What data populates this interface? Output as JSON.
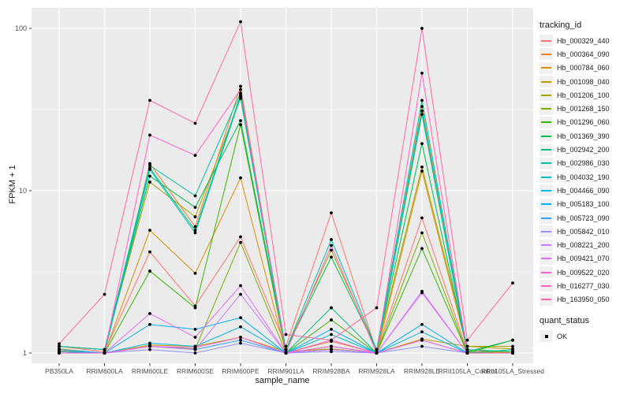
{
  "figure": {
    "y_axis_title": "FPKM + 1",
    "x_axis_title": "sample_name",
    "legend1_title": "tracking_id",
    "legend2_title": "quant_status",
    "quant_status_label": "OK",
    "panel_bg": "#EBEBEB",
    "grid_color": "#FFFFFF",
    "tick_color": "#333333",
    "point_color": "#000000"
  },
  "chart_data": {
    "type": "line",
    "title": "",
    "xlabel": "sample_name",
    "ylabel": "FPKM + 1",
    "y_scale": "log10",
    "ylim": [
      0.87,
      135
    ],
    "y_major_ticks": [
      1,
      10,
      100
    ],
    "y_tick_labels": [
      "1",
      "10",
      "100"
    ],
    "y_minor_gridlines": [
      3.162,
      31.62
    ],
    "grid": "on",
    "legend_position": "right",
    "point_legend": {
      "title": "quant_status",
      "entries": [
        {
          "label": "OK",
          "symbol": "black-point"
        }
      ]
    },
    "categories": [
      "PB350LA",
      "RRIM600LA",
      "RRIM600LE",
      "RRIM600SE",
      "RRIM600PE",
      "RRIM901LA",
      "RRIM928BA",
      "RRIM928LA",
      "RRIM928LE",
      "RRII105LA_Control",
      "RRII105LA_Stressed"
    ],
    "series": [
      {
        "name": "Hb_000329_440",
        "color": "#F8766D",
        "values": [
          1.1,
          1.02,
          4.2,
          1.95,
          5.2,
          1.1,
          7.3,
          1.02,
          6.8,
          1.02,
          1.02
        ]
      },
      {
        "name": "Hb_000364_090",
        "color": "#EA8331",
        "values": [
          1.02,
          1.0,
          14.7,
          6.0,
          44,
          1.0,
          1.18,
          1.0,
          33,
          1.0,
          1.0
        ]
      },
      {
        "name": "Hb_000784_060",
        "color": "#D89000",
        "values": [
          1.03,
          1.0,
          5.7,
          3.1,
          12.0,
          1.0,
          1.1,
          1.0,
          13.2,
          1.05,
          1.0
        ]
      },
      {
        "name": "Hb_001098_040",
        "color": "#C09B00",
        "values": [
          1.06,
          1.0,
          1.12,
          1.1,
          1.25,
          1.02,
          1.06,
          1.0,
          1.22,
          1.1,
          1.06
        ]
      },
      {
        "name": "Hb_001206_100",
        "color": "#A3A500",
        "values": [
          1.1,
          1.05,
          11.3,
          6.9,
          37,
          1.05,
          4.3,
          1.05,
          14.0,
          1.1,
          1.1
        ]
      },
      {
        "name": "Hb_001268_150",
        "color": "#7CAE00",
        "values": [
          1.02,
          1.0,
          1.1,
          1.06,
          4.8,
          1.0,
          1.05,
          1.0,
          5.5,
          1.0,
          1.02
        ]
      },
      {
        "name": "Hb_001296_060",
        "color": "#39B600",
        "values": [
          1.05,
          1.0,
          3.2,
          1.9,
          25.5,
          1.0,
          1.6,
          1.0,
          4.4,
          1.0,
          1.2
        ]
      },
      {
        "name": "Hb_001369_390",
        "color": "#00BB4E",
        "values": [
          1.1,
          1.05,
          12.3,
          7.9,
          27,
          1.05,
          3.9,
          1.05,
          19.5,
          1.02,
          1.2
        ]
      },
      {
        "name": "Hb_002942_200",
        "color": "#00C079",
        "values": [
          1.05,
          1.0,
          13.8,
          5.7,
          39,
          1.0,
          1.9,
          1.0,
          29.5,
          1.0,
          1.05
        ]
      },
      {
        "name": "Hb_002986_030",
        "color": "#00C19F",
        "values": [
          1.1,
          1.05,
          14.3,
          9.3,
          40,
          1.05,
          5.0,
          1.05,
          36,
          1.05,
          1.02
        ]
      },
      {
        "name": "Hb_004032_190",
        "color": "#00BFC4",
        "values": [
          1.02,
          1.0,
          13.5,
          5.5,
          38,
          1.0,
          1.3,
          1.0,
          31,
          1.0,
          1.0
        ]
      },
      {
        "name": "Hb_004466_090",
        "color": "#00BAE0",
        "values": [
          1.05,
          1.0,
          1.15,
          1.1,
          1.45,
          1.0,
          1.1,
          1.0,
          1.35,
          1.0,
          1.0
        ]
      },
      {
        "name": "Hb_005183_100",
        "color": "#00B0F6",
        "values": [
          1.02,
          1.0,
          1.5,
          1.4,
          1.65,
          1.0,
          1.4,
          1.0,
          1.5,
          1.0,
          1.0
        ]
      },
      {
        "name": "Hb_005723_090",
        "color": "#35A2FF",
        "values": [
          1.05,
          1.0,
          1.1,
          1.05,
          1.2,
          1.0,
          1.05,
          1.0,
          1.2,
          1.0,
          1.0
        ]
      },
      {
        "name": "Hb_005842_010",
        "color": "#9590FF",
        "values": [
          1.0,
          1.0,
          1.05,
          1.0,
          1.15,
          1.0,
          1.02,
          1.0,
          1.1,
          1.0,
          1.0
        ]
      },
      {
        "name": "Hb_008221_200",
        "color": "#C77CFF",
        "values": [
          1.0,
          1.0,
          1.1,
          1.05,
          2.3,
          1.0,
          1.05,
          1.0,
          2.4,
          1.0,
          1.0
        ]
      },
      {
        "name": "Hb_009421_070",
        "color": "#E76BF3",
        "values": [
          1.0,
          1.0,
          1.75,
          1.25,
          2.6,
          1.0,
          1.2,
          1.0,
          2.35,
          1.0,
          1.0
        ]
      },
      {
        "name": "Hb_009522_020",
        "color": "#FA62DB",
        "values": [
          1.0,
          1.0,
          1.1,
          1.08,
          1.25,
          1.0,
          1.1,
          1.0,
          1.2,
          1.0,
          1.0
        ]
      },
      {
        "name": "Hb_016277_030",
        "color": "#FF61C3",
        "values": [
          1.0,
          1.0,
          22,
          16.5,
          42,
          1.0,
          4.6,
          1.0,
          53,
          1.0,
          1.0
        ]
      },
      {
        "name": "Hb_163950_050",
        "color": "#FF67A4",
        "values": [
          1.14,
          2.3,
          36,
          26,
          110,
          1.3,
          1.2,
          1.9,
          100,
          1.2,
          2.7
        ]
      }
    ]
  }
}
